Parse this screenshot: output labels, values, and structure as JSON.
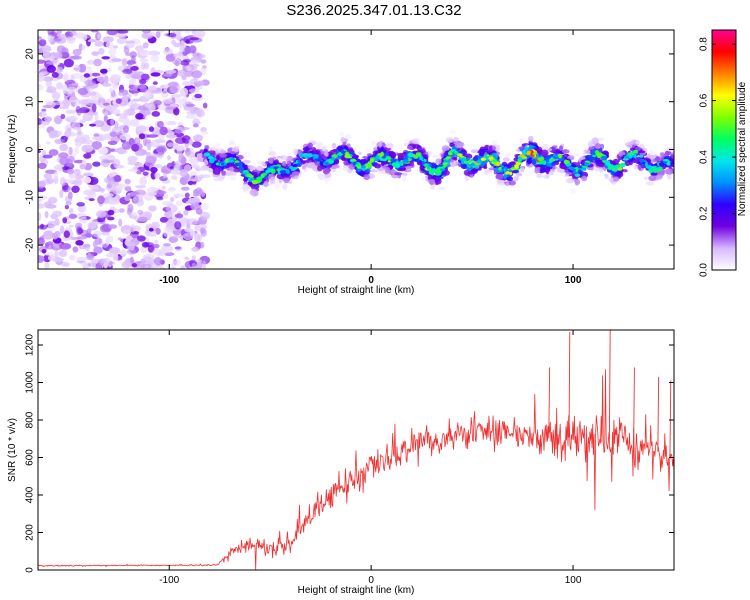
{
  "chart_data": [
    {
      "type": "heatmap",
      "title": "S236.2025.347.01.13.C32",
      "xlabel": "Height of straight line (km)",
      "ylabel": "Frequency (Hz)",
      "xlim": [
        -165,
        150
      ],
      "ylim": [
        -25,
        25
      ],
      "x_ticks": [
        -100,
        0,
        100
      ],
      "y_ticks": [
        -20,
        -10,
        0,
        10,
        20
      ],
      "noise_region_x": [
        -165,
        -82
      ],
      "noise_region_y": [
        -25,
        25
      ],
      "ridge": {
        "x": [
          -82,
          -75,
          -65,
          -55,
          -48,
          -40,
          -30,
          -20,
          -10,
          0,
          10,
          20,
          30,
          35,
          40,
          50,
          60,
          70,
          80,
          90,
          100,
          110,
          120,
          130,
          140,
          150
        ],
        "y": [
          -1,
          -2,
          -4,
          -6,
          -5,
          -3,
          -2,
          -1.5,
          -2,
          -3,
          -2,
          -2,
          -3.5,
          -4,
          -1.5,
          -2,
          -3,
          -4,
          -1,
          -2,
          -4,
          -2,
          -3,
          -2,
          -3,
          -4
        ],
        "peak": [
          0.4,
          0.5,
          0.55,
          0.55,
          0.5,
          0.45,
          0.4,
          0.5,
          0.6,
          0.55,
          0.6,
          0.55,
          0.6,
          0.65,
          0.55,
          0.7,
          0.7,
          0.6,
          0.85,
          0.6,
          0.5,
          0.55,
          0.6,
          0.5,
          0.5,
          0.45
        ]
      },
      "colorbar": {
        "label": "Normalized spectral amplitude",
        "range": [
          0.0,
          0.85
        ],
        "ticks": [
          "0.0",
          "0.2",
          "0.4",
          "0.6",
          "0.8"
        ],
        "tick_values": [
          0.0,
          0.2,
          0.4,
          0.6,
          0.8
        ],
        "colors": [
          "#ffffff",
          "#d8b8ff",
          "#7000e0",
          "#3000ff",
          "#0090ff",
          "#00e8e8",
          "#00ff60",
          "#80ff00",
          "#ffff00",
          "#ff8000",
          "#ff0000",
          "#ff0090"
        ]
      }
    },
    {
      "type": "line",
      "title": "",
      "xlabel": "Height of straight line (km)",
      "ylabel": "SNR (10 * v/v)",
      "xlim": [
        -165,
        150
      ],
      "ylim": [
        0,
        1280
      ],
      "x_ticks": [
        -100,
        0,
        100
      ],
      "y_ticks": [
        0,
        200,
        400,
        600,
        800,
        1000,
        1200
      ],
      "color": "#f03030",
      "series": [
        {
          "name": "SNR",
          "x": [
            -165,
            -140,
            -110,
            -85,
            -76,
            -70,
            -62,
            -55,
            -48,
            -40,
            -35,
            -30,
            -22,
            -15,
            -8,
            0,
            8,
            15,
            22,
            30,
            40,
            50,
            60,
            70,
            80,
            90,
            95,
            100,
            110,
            120,
            130,
            140,
            150
          ],
          "y": [
            22,
            24,
            25,
            25,
            28,
            90,
            130,
            130,
            110,
            150,
            220,
            320,
            380,
            440,
            470,
            530,
            580,
            630,
            680,
            700,
            710,
            720,
            730,
            730,
            710,
            700,
            720,
            700,
            690,
            700,
            660,
            640,
            600
          ],
          "spread": [
            6,
            6,
            6,
            6,
            12,
            60,
            80,
            80,
            70,
            110,
            150,
            180,
            170,
            170,
            160,
            150,
            150,
            140,
            150,
            140,
            140,
            140,
            160,
            170,
            200,
            230,
            250,
            240,
            260,
            280,
            300,
            300,
            330
          ]
        }
      ],
      "peaks": [
        {
          "x": 88,
          "y": 1080
        },
        {
          "x": 98,
          "y": 1270
        },
        {
          "x": 118,
          "y": 1280
        },
        {
          "x": 130,
          "y": 1080
        },
        {
          "x": 142,
          "y": 1030
        },
        {
          "x": 148,
          "y": 1010
        }
      ]
    }
  ]
}
